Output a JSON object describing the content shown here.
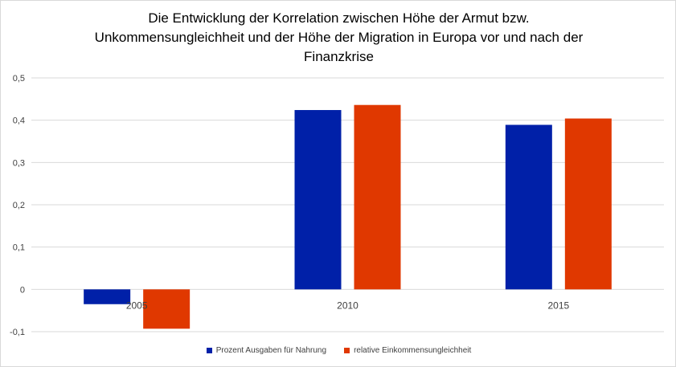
{
  "chart_data": {
    "type": "bar",
    "title_lines": [
      "Die Entwicklung der Korrelation zwischen Höhe der Armut bzw.",
      "Unkommensungleichheit und der Höhe der Migration in Europa vor und nach der",
      "Finanzkrise"
    ],
    "categories": [
      "2005",
      "2010",
      "2015"
    ],
    "series": [
      {
        "name": "Prozent Ausgaben für Nahrung",
        "color": "#0020a8",
        "values": [
          -0.035,
          0.424,
          0.389
        ]
      },
      {
        "name": "relative Einkommensungleichheit",
        "color": "#e03800",
        "values": [
          -0.093,
          0.436,
          0.404
        ]
      }
    ],
    "ylim": [
      -0.1,
      0.5
    ],
    "yticks": [
      "-0,1",
      "0",
      "0,1",
      "0,2",
      "0,3",
      "0,4",
      "0,5"
    ],
    "grid": true,
    "legend_position": "bottom"
  }
}
